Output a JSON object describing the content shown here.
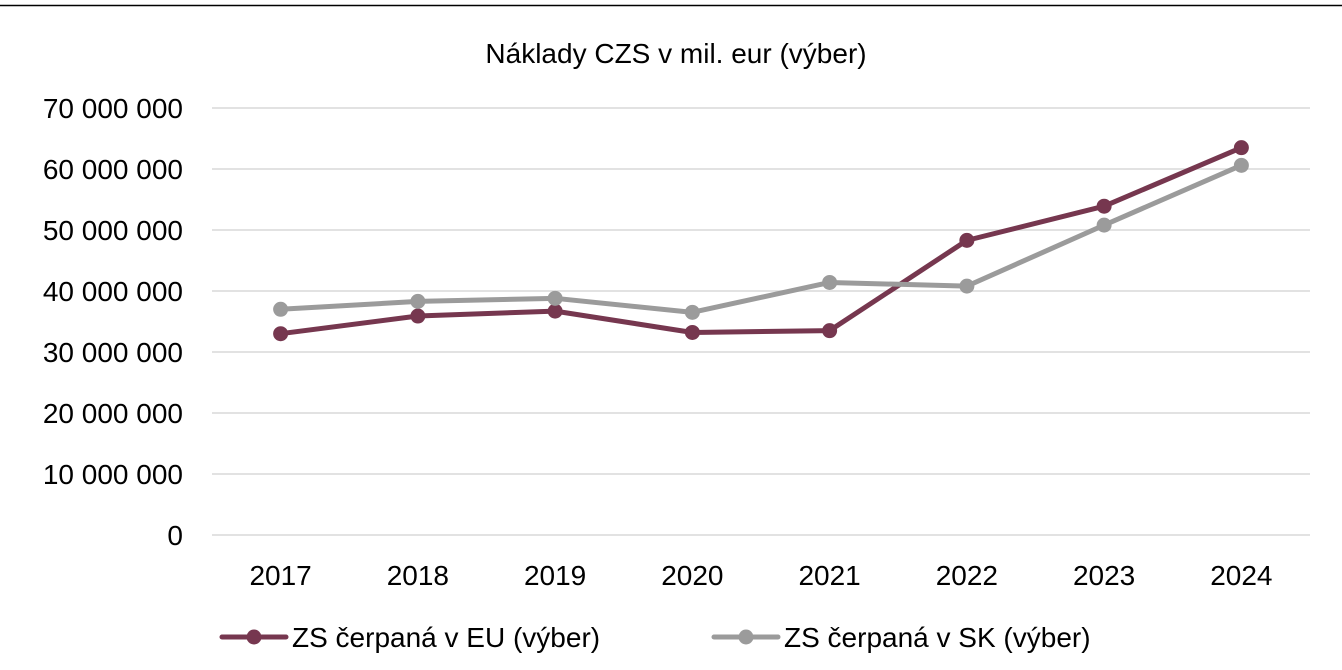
{
  "chart_data": {
    "type": "line",
    "title": "Náklady CZS v mil. eur (výber)",
    "xlabel": "",
    "ylabel": "",
    "categories": [
      "2017",
      "2018",
      "2019",
      "2020",
      "2021",
      "2022",
      "2023",
      "2024"
    ],
    "ylim": [
      0,
      70000000
    ],
    "yticks": [
      0,
      10000000,
      20000000,
      30000000,
      40000000,
      50000000,
      60000000,
      70000000
    ],
    "ytick_labels": [
      "0",
      "10 000 000",
      "20 000 000",
      "30 000 000",
      "40 000 000",
      "50 000 000",
      "60 000 000",
      "70 000 000"
    ],
    "grid": "horizontal",
    "legend_position": "bottom",
    "series": [
      {
        "name": "ZS čerpaná v EU (výber)",
        "color": "#76374f",
        "values": [
          33000000,
          35900000,
          36700000,
          33200000,
          33500000,
          48300000,
          53900000,
          63500000
        ]
      },
      {
        "name": "ZS čerpaná v SK (výber)",
        "color": "#9b9b9b",
        "values": [
          37000000,
          38300000,
          38800000,
          36500000,
          41400000,
          40800000,
          50800000,
          60600000
        ]
      }
    ]
  }
}
